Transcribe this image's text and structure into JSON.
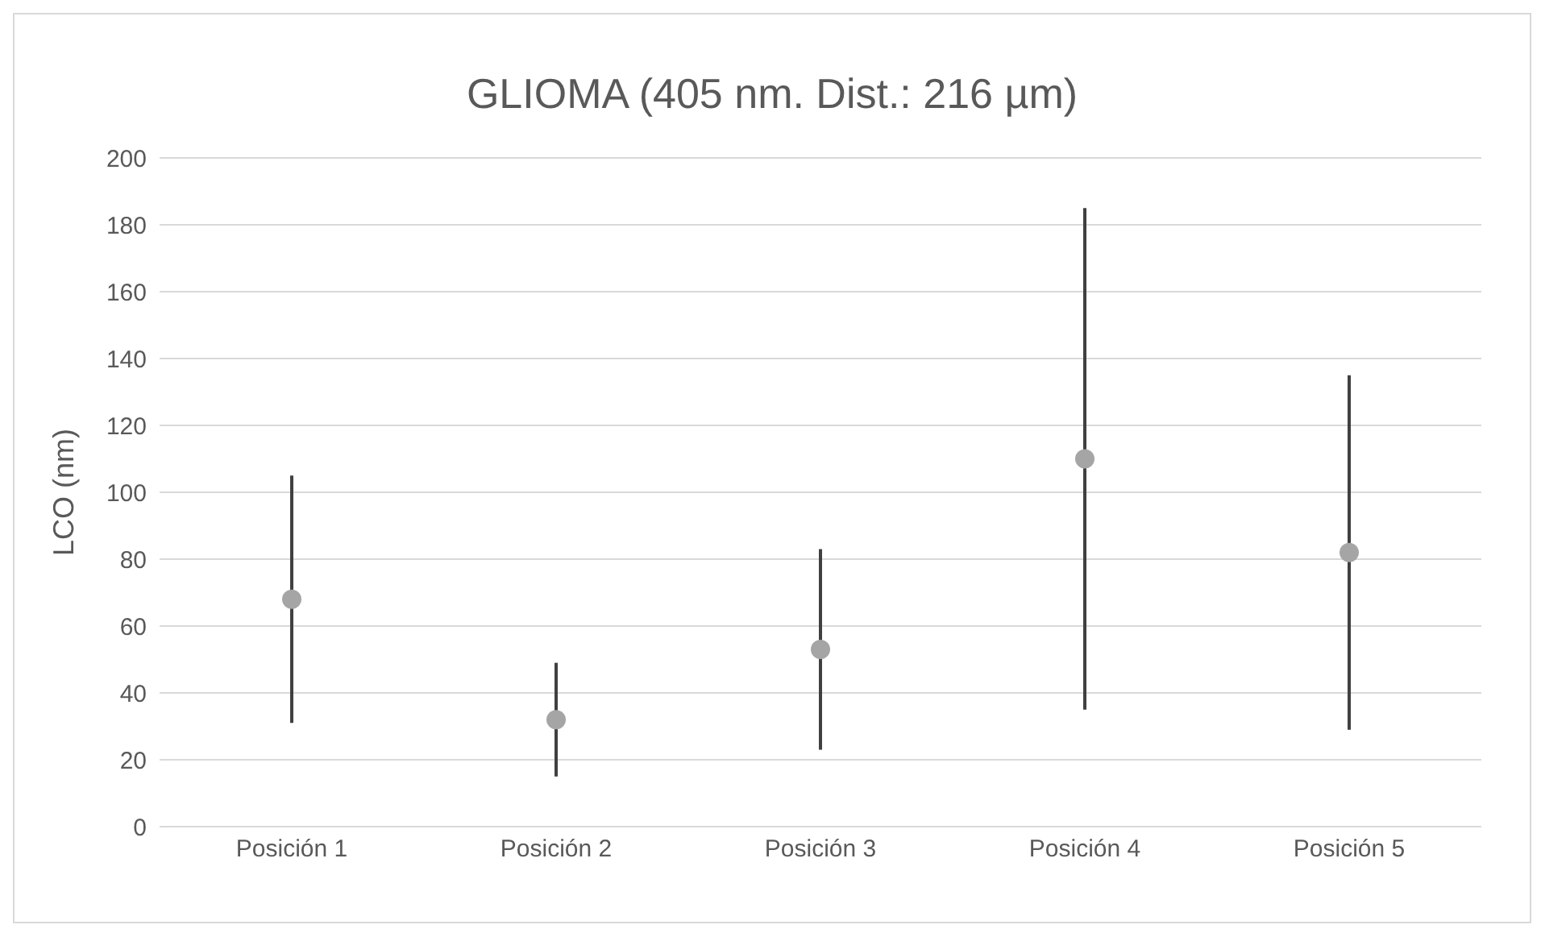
{
  "chart_data": {
    "type": "scatter",
    "title": "GLIOMA (405 nm. Dist.: 216 µm)",
    "ylabel": "LCO (nm)",
    "categories": [
      "Posición 1",
      "Posición 2",
      "Posición 3",
      "Posición 4",
      "Posición 5"
    ],
    "values": [
      68,
      32,
      53,
      110,
      82
    ],
    "errors": [
      [
        31,
        105
      ],
      [
        15,
        49
      ],
      [
        23,
        83
      ],
      [
        35,
        185
      ],
      [
        29,
        135
      ]
    ],
    "color": "#a5a5a5",
    "marker": "circle",
    "ylim": [
      0,
      200
    ],
    "yticks": [
      0,
      20,
      40,
      60,
      80,
      100,
      120,
      140,
      160,
      180,
      200
    ],
    "grid": "y",
    "legend": false
  }
}
